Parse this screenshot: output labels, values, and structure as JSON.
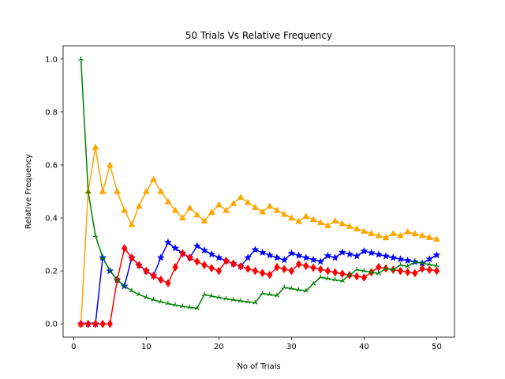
{
  "chart_data": {
    "type": "line",
    "title": "50 Trials Vs Relative Frequency",
    "xlabel": "No of Trials",
    "ylabel": "Relative Frequency",
    "xlim": [
      -1.45,
      52.45
    ],
    "ylim": [
      -0.05,
      1.05
    ],
    "xticks": [
      0,
      10,
      20,
      30,
      40,
      50
    ],
    "yticks": [
      0.0,
      0.2,
      0.4,
      0.6,
      0.8,
      1.0
    ],
    "xtick_labels": [
      "0",
      "10",
      "20",
      "30",
      "40",
      "50"
    ],
    "ytick_labels": [
      "0.0",
      "0.2",
      "0.4",
      "0.6",
      "0.8",
      "1.0"
    ],
    "grid": false,
    "legend": false,
    "x": [
      1,
      2,
      3,
      4,
      5,
      6,
      7,
      8,
      9,
      10,
      11,
      12,
      13,
      14,
      15,
      16,
      17,
      18,
      19,
      20,
      21,
      22,
      23,
      24,
      25,
      26,
      27,
      28,
      29,
      30,
      31,
      32,
      33,
      34,
      35,
      36,
      37,
      38,
      39,
      40,
      41,
      42,
      43,
      44,
      45,
      46,
      47,
      48,
      49,
      50
    ],
    "series": [
      {
        "color": "#0000ff",
        "marker": "star",
        "values": [
          0,
          0,
          0,
          0.25,
          0.2,
          0.1667,
          0.1429,
          0.25,
          0.2222,
          0.2,
          0.1818,
          0.25,
          0.3077,
          0.2857,
          0.2667,
          0.25,
          0.2941,
          0.2778,
          0.2632,
          0.25,
          0.2381,
          0.2273,
          0.2174,
          0.25,
          0.28,
          0.2692,
          0.2593,
          0.25,
          0.2414,
          0.2667,
          0.2581,
          0.25,
          0.2424,
          0.2353,
          0.2571,
          0.25,
          0.2703,
          0.2632,
          0.2564,
          0.275,
          0.2683,
          0.2619,
          0.2558,
          0.25,
          0.2444,
          0.2391,
          0.234,
          0.2292,
          0.2449,
          0.26
        ]
      },
      {
        "color": "#ffa500",
        "marker": "triangle",
        "values": [
          0,
          0.5,
          0.6667,
          0.5,
          0.6,
          0.5,
          0.4286,
          0.375,
          0.4444,
          0.5,
          0.5455,
          0.5,
          0.4615,
          0.4286,
          0.4,
          0.4375,
          0.4118,
          0.3889,
          0.4211,
          0.45,
          0.4286,
          0.4545,
          0.4783,
          0.4583,
          0.44,
          0.4231,
          0.4444,
          0.4286,
          0.4138,
          0.4,
          0.3871,
          0.4063,
          0.3939,
          0.3824,
          0.3714,
          0.3889,
          0.3784,
          0.3684,
          0.359,
          0.35,
          0.3415,
          0.3333,
          0.3256,
          0.3409,
          0.3333,
          0.3478,
          0.3404,
          0.3333,
          0.3265,
          0.32
        ]
      },
      {
        "color": "#ff0000",
        "marker": "diamond",
        "values": [
          0,
          0,
          0,
          0,
          0,
          0.1667,
          0.2857,
          0.25,
          0.2222,
          0.2,
          0.1818,
          0.1667,
          0.1538,
          0.2143,
          0.2667,
          0.25,
          0.2353,
          0.2222,
          0.2105,
          0.2,
          0.2381,
          0.2273,
          0.2174,
          0.2083,
          0.2,
          0.1923,
          0.1852,
          0.2143,
          0.2069,
          0.2,
          0.2258,
          0.2188,
          0.2121,
          0.2059,
          0.2,
          0.1944,
          0.1892,
          0.1842,
          0.1795,
          0.175,
          0.1951,
          0.2143,
          0.2093,
          0.2045,
          0.2,
          0.1957,
          0.1915,
          0.2083,
          0.2041,
          0.2
        ]
      },
      {
        "color": "#008000",
        "marker": "tri",
        "values": [
          1.0,
          0.5,
          0.3333,
          0.25,
          0.2,
          0.1667,
          0.1429,
          0.125,
          0.1111,
          0.1,
          0.0909,
          0.0833,
          0.0769,
          0.0714,
          0.0667,
          0.0625,
          0.0588,
          0.1111,
          0.1053,
          0.1,
          0.0952,
          0.0909,
          0.087,
          0.0833,
          0.08,
          0.1154,
          0.1111,
          0.1071,
          0.1379,
          0.1333,
          0.129,
          0.125,
          0.1515,
          0.1765,
          0.1714,
          0.1667,
          0.1622,
          0.1842,
          0.2051,
          0.2,
          0.1951,
          0.1905,
          0.2093,
          0.2045,
          0.2222,
          0.2174,
          0.234,
          0.2292,
          0.2245,
          0.22
        ]
      }
    ]
  }
}
